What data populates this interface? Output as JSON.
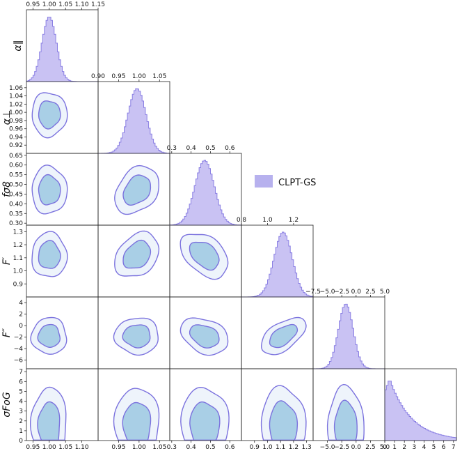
{
  "chart_data": {
    "type": "corner",
    "title": "",
    "legend": {
      "position": "center-right",
      "entries": [
        {
          "label": "CLPT-GS",
          "color": "#b7b1ee"
        }
      ]
    },
    "colors": {
      "hist_fill": "#c9c2f3",
      "hist_edge": "#8a7fe3",
      "contour_inner": "#a9cfe6",
      "contour_outer": "#eef4fb",
      "contour_edge": "#7b72de"
    },
    "parameters": [
      {
        "name": "alpha_par",
        "label": "α∥",
        "top_label": "α∥",
        "range": [
          0.93,
          1.15
        ],
        "ticks": [
          0.95,
          1.0,
          1.05,
          1.1,
          1.15
        ],
        "tick_labels": [
          "0.95",
          "1.00",
          "1.05",
          "1.10",
          "1.15"
        ],
        "mean": 1.0,
        "sigma": 0.022
      },
      {
        "name": "alpha_perp",
        "label": "α⊥",
        "top_label": "α⊥",
        "range": [
          0.9,
          1.075
        ],
        "ticks": [
          0.9,
          0.92,
          0.94,
          0.96,
          0.98,
          1.0,
          1.02,
          1.04,
          1.05,
          1.06
        ],
        "top_ticks": [
          0.9,
          0.95,
          1.0,
          1.05
        ],
        "top_tick_labels": [
          "0.90",
          "0.95",
          "1.00",
          "1.05"
        ],
        "left_ticks": [
          0.92,
          0.94,
          0.96,
          0.98,
          1.0,
          1.02,
          1.04,
          1.06
        ],
        "left_tick_labels": [
          "0.92",
          "0.94",
          "0.96",
          "0.98",
          "1.00",
          "1.02",
          "1.04",
          "1.06"
        ],
        "bottom_ticks": [
          0.95,
          1.0,
          1.05
        ],
        "bottom_tick_labels": [
          "0.95",
          "1.00",
          "1.05"
        ],
        "mean": 0.995,
        "sigma": 0.022
      },
      {
        "name": "fsigma8",
        "label": "fσ8",
        "top_label": "fσ8",
        "range": [
          0.29,
          0.66
        ],
        "top_ticks": [
          0.3,
          0.4,
          0.5,
          0.6
        ],
        "top_tick_labels": [
          "0.3",
          "0.4",
          "0.5",
          "0.6"
        ],
        "left_ticks": [
          0.3,
          0.35,
          0.4,
          0.45,
          0.5,
          0.55,
          0.6,
          0.65
        ],
        "left_tick_labels": [
          "0.30",
          "0.35",
          "0.40",
          "0.45",
          "0.50",
          "0.55",
          "0.60",
          "0.65"
        ],
        "bottom_ticks": [
          0.3,
          0.4,
          0.5,
          0.6
        ],
        "bottom_tick_labels": [
          "0.3",
          "0.4",
          "0.5",
          "0.6"
        ],
        "mean": 0.47,
        "sigma": 0.05
      },
      {
        "name": "Fprime",
        "label": "F′",
        "top_label": "F′",
        "range": [
          0.8,
          1.35
        ],
        "top_ticks": [
          0.8,
          1.0,
          1.2
        ],
        "top_tick_labels": [
          "0.8",
          "1.0",
          "1.2"
        ],
        "left_ticks": [
          0.9,
          1.0,
          1.1,
          1.2,
          1.3
        ],
        "left_tick_labels": [
          "0.9",
          "1.0",
          "1.1",
          "1.2",
          "1.3"
        ],
        "bottom_ticks": [
          0.9,
          1.0,
          1.1,
          1.2,
          1.3
        ],
        "bottom_tick_labels": [
          "0.9",
          "1.0",
          "1.1",
          "1.2",
          "1.3"
        ],
        "mean": 1.12,
        "sigma": 0.07
      },
      {
        "name": "Fdprime",
        "label": "F″",
        "top_label": "F″",
        "range": [
          -7.5,
          5.0
        ],
        "top_ticks": [
          -7.5,
          -5.0,
          -2.5,
          0.0,
          2.5,
          5.0
        ],
        "top_tick_labels": [
          "−7.5",
          "−5.0",
          "−2.5",
          "0.0",
          "2.5",
          "5.0"
        ],
        "left_ticks": [
          -6,
          -4,
          -2,
          0,
          2,
          4
        ],
        "left_tick_labels": [
          "−6",
          "−4",
          "−2",
          "0",
          "2",
          "4"
        ],
        "bottom_ticks": [
          -5.0,
          -2.5,
          0.0,
          2.5,
          5.0
        ],
        "bottom_tick_labels": [
          "−5.0",
          "−2.5",
          "0.0",
          "2.5",
          "5.0"
        ],
        "mean": -1.8,
        "sigma": 1.3
      },
      {
        "name": "sigma_FoG",
        "label": "σFoG",
        "range": [
          0,
          7.3
        ],
        "left_ticks": [
          0,
          1,
          2,
          3,
          4,
          5,
          6,
          7
        ],
        "left_tick_labels": [
          "0",
          "1",
          "2",
          "3",
          "4",
          "5",
          "6",
          "7"
        ],
        "bottom_ticks": [
          0,
          1,
          2,
          3,
          4,
          5,
          6,
          7
        ],
        "bottom_tick_labels": [
          "0",
          "1",
          "2",
          "3",
          "4",
          "5",
          "6",
          "7"
        ],
        "mean": 1.5,
        "sigma": 1.6
      }
    ],
    "alpha_par_left_ticks": [],
    "alpha_par_bottom_ticks": [
      0.95,
      1.0,
      1.05,
      1.1
    ],
    "alpha_par_bottom_tick_labels": [
      "0.95",
      "1.00",
      "1.05",
      "1.10"
    ],
    "correlations": [
      [
        1,
        0.0,
        0.0,
        0.0,
        0.0,
        0.0
      ],
      [
        0.0,
        1,
        0.3,
        0.3,
        0.0,
        0.0
      ],
      [
        0.0,
        0.3,
        1,
        -0.4,
        -0.3,
        0.0
      ],
      [
        0.0,
        0.3,
        -0.4,
        1,
        0.55,
        0.0
      ],
      [
        0.0,
        0.0,
        -0.3,
        0.55,
        1,
        0.0
      ],
      [
        0.0,
        0.0,
        0.0,
        0.0,
        0.0,
        1
      ]
    ]
  }
}
